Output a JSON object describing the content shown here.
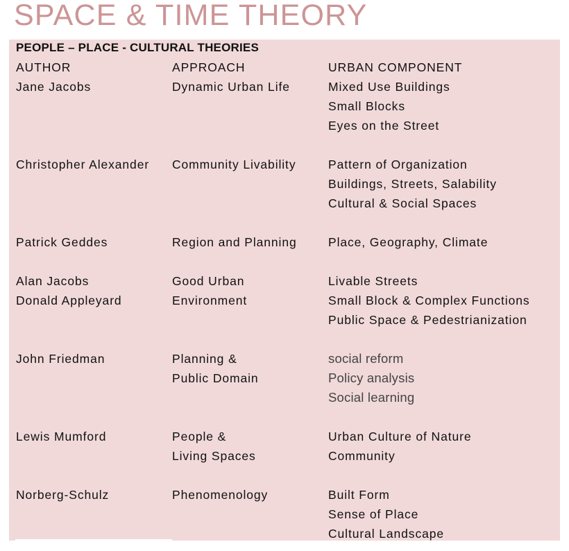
{
  "title": "SPACE & TIME THEORY",
  "subtitle": "PEOPLE – PLACE - CULTURAL THEORIES",
  "headers": {
    "author": "AUTHOR",
    "approach": "APPROACH",
    "component": "URBAN COMPONENT"
  },
  "colors": {
    "title": "#cc9596",
    "panel": "#f1d9da"
  },
  "rows": [
    {
      "author": [
        "Jane Jacobs"
      ],
      "approach": [
        "Dynamic Urban Life"
      ],
      "components": [
        "Mixed Use Buildings",
        "Small Blocks",
        "Eyes on the Street"
      ]
    },
    {
      "author": [
        "Christopher Alexander"
      ],
      "approach": [
        "Community Livability"
      ],
      "components": [
        "Pattern of Organization",
        "Buildings, Streets, Salability",
        "Cultural & Social Spaces"
      ]
    },
    {
      "author": [
        "Patrick Geddes"
      ],
      "approach": [
        "Region and Planning"
      ],
      "components": [
        "Place, Geography, Climate"
      ]
    },
    {
      "author": [
        "Alan Jacobs",
        "Donald Appleyard"
      ],
      "approach": [
        "Good Urban",
        "Environment"
      ],
      "components": [
        "Livable Streets",
        "Small Block & Complex Functions",
        "Public Space & Pedestrianization"
      ]
    },
    {
      "author": [
        "John Friedman"
      ],
      "approach": [
        "Planning &",
        "Public Domain"
      ],
      "components": [
        "social reform",
        "Policy analysis",
        "Social learning"
      ],
      "alt_font": true
    },
    {
      "author": [
        "Lewis Mumford"
      ],
      "approach": [
        "People &",
        "Living Spaces"
      ],
      "components": [
        "Urban Culture of Nature",
        "Community"
      ]
    },
    {
      "author": [
        "Norberg-Schulz"
      ],
      "approach": [
        "Phenomenology"
      ],
      "components": [
        "Built Form",
        "Sense of Place",
        "Cultural Landscape"
      ]
    }
  ]
}
